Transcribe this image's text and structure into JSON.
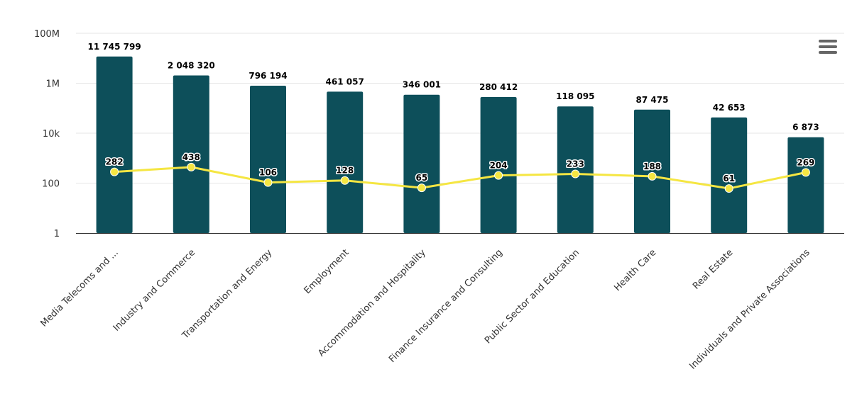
{
  "chart_data": {
    "type": "bar",
    "y_scale": "log",
    "ylim": [
      1,
      100000000
    ],
    "y_ticks": [
      "1",
      "100",
      "10k",
      "1M",
      "100M"
    ],
    "y_tick_values": [
      1,
      100,
      10000,
      1000000,
      100000000
    ],
    "grid": true,
    "categories": [
      "Media Telecoms and ...",
      "Industry and Commerce",
      "Transportation and Energy",
      "Employment",
      "Accommodation and Hospitality",
      "Finance Insurance and Consulting",
      "Public Sector and Education",
      "Health Care",
      "Real Estate",
      "Individuals and Private Associations"
    ],
    "series": [
      {
        "type": "bar",
        "color": "#0d4f5a",
        "values": [
          11745799,
          2048320,
          796194,
          461057,
          346001,
          280412,
          118095,
          87475,
          42653,
          6873
        ],
        "labels": [
          "11 745 799",
          "2 048 320",
          "796 194",
          "461 057",
          "346 001",
          "280 412",
          "118 095",
          "87 475",
          "42 653",
          "6 873"
        ]
      },
      {
        "type": "line",
        "color": "#f5e642",
        "values": [
          282,
          438,
          106,
          128,
          65,
          204,
          233,
          188,
          61,
          269
        ],
        "labels": [
          "282",
          "438",
          "106",
          "128",
          "65",
          "204",
          "233",
          "188",
          "61",
          "269"
        ]
      }
    ]
  },
  "menu": {
    "icon": "hamburger-menu-icon"
  }
}
